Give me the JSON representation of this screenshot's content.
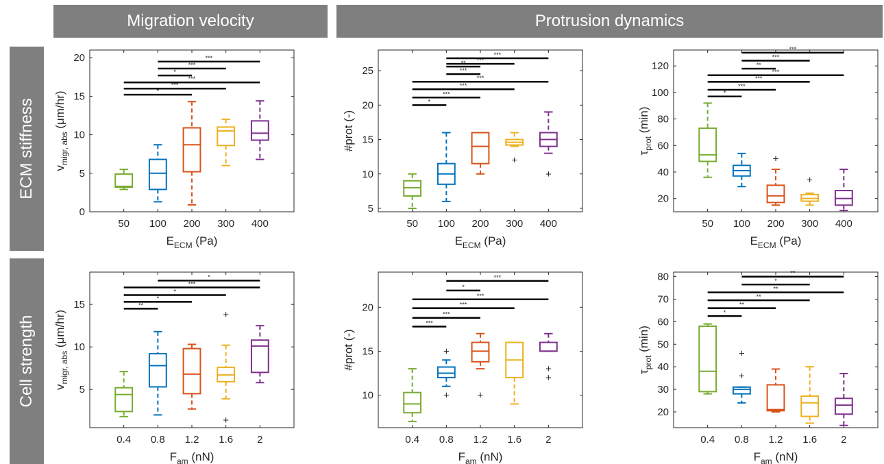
{
  "headers": {
    "migration": "Migration velocity",
    "protrusion": "Protrusion dynamics",
    "row1": "ECM stiffness",
    "row2": "Cell strength"
  },
  "colors": [
    "#77AC30",
    "#0072BD",
    "#D95319",
    "#EDB120",
    "#7E2F8E"
  ],
  "chart_data": [
    {
      "type": "box",
      "categories": [
        "50",
        "100",
        "200",
        "300",
        "400"
      ],
      "xlabel": "E_ECM (Pa)",
      "ylabel": "v_migr, abs (μm/hr)",
      "ylim": [
        0,
        21
      ],
      "yticks": [
        0,
        5,
        10,
        15,
        20
      ],
      "boxes": [
        {
          "lw": 2.9,
          "q1": 3.2,
          "med": 3.3,
          "q3": 4.9,
          "uw": 5.5,
          "out": []
        },
        {
          "lw": 1.3,
          "q1": 2.9,
          "med": 5.0,
          "q3": 6.8,
          "uw": 8.7,
          "out": []
        },
        {
          "lw": 0.9,
          "q1": 5.2,
          "med": 8.7,
          "q3": 10.9,
          "uw": 14.3,
          "out": []
        },
        {
          "lw": 6.0,
          "q1": 8.6,
          "med": 10.5,
          "q3": 11.0,
          "uw": 12.0,
          "out": []
        },
        {
          "lw": 6.8,
          "q1": 9.3,
          "med": 10.2,
          "q3": 11.8,
          "uw": 14.4,
          "out": []
        }
      ],
      "sig": [
        {
          "from": 0,
          "to": 2,
          "y": 15.2,
          "label": "*"
        },
        {
          "from": 0,
          "to": 3,
          "y": 16.0,
          "label": "***"
        },
        {
          "from": 0,
          "to": 4,
          "y": 16.8,
          "label": "***"
        },
        {
          "from": 1,
          "to": 2,
          "y": 17.7,
          "label": "*"
        },
        {
          "from": 1,
          "to": 3,
          "y": 18.6,
          "label": "***"
        },
        {
          "from": 1,
          "to": 4,
          "y": 19.5,
          "label": "***"
        }
      ]
    },
    {
      "type": "box",
      "categories": [
        "50",
        "100",
        "200",
        "300",
        "400"
      ],
      "xlabel": "E_ECM (Pa)",
      "ylabel": "#prot (-)",
      "ylim": [
        4.5,
        28
      ],
      "yticks": [
        5,
        10,
        15,
        20,
        25
      ],
      "boxes": [
        {
          "lw": 5,
          "q1": 6.8,
          "med": 8,
          "q3": 9,
          "uw": 10,
          "out": []
        },
        {
          "lw": 6,
          "q1": 8.5,
          "med": 10,
          "q3": 11.5,
          "uw": 16,
          "out": []
        },
        {
          "lw": 10,
          "q1": 11.5,
          "med": 14,
          "q3": 16,
          "uw": 16,
          "out": []
        },
        {
          "lw": 14,
          "q1": 14.2,
          "med": 14.6,
          "q3": 15,
          "uw": 16,
          "out": [
            12
          ]
        },
        {
          "lw": 13,
          "q1": 14,
          "med": 15,
          "q3": 16,
          "uw": 19,
          "out": [
            10
          ]
        }
      ],
      "sig": [
        {
          "from": 0,
          "to": 1,
          "y": 20.0,
          "label": "*"
        },
        {
          "from": 0,
          "to": 2,
          "y": 21.1,
          "label": "***"
        },
        {
          "from": 0,
          "to": 3,
          "y": 22.3,
          "label": "***"
        },
        {
          "from": 0,
          "to": 4,
          "y": 23.4,
          "label": "***"
        },
        {
          "from": 1,
          "to": 2,
          "y": 24.5,
          "label": "***"
        },
        {
          "from": 1,
          "to": 2,
          "y": 25.6,
          "label": "**"
        },
        {
          "from": 1,
          "to": 3,
          "y": 26.0,
          "label": "***"
        },
        {
          "from": 1,
          "to": 4,
          "y": 26.8,
          "label": "***"
        }
      ]
    },
    {
      "type": "box",
      "categories": [
        "50",
        "100",
        "200",
        "300",
        "400"
      ],
      "xlabel": "E_ECM (Pa)",
      "ylabel": "τ_prot (min)",
      "ylim": [
        10,
        132
      ],
      "yticks": [
        20,
        40,
        60,
        80,
        100,
        120
      ],
      "boxes": [
        {
          "lw": 36,
          "q1": 48,
          "med": 53,
          "q3": 73,
          "uw": 92,
          "out": []
        },
        {
          "lw": 29,
          "q1": 37,
          "med": 41,
          "q3": 45,
          "uw": 54,
          "out": []
        },
        {
          "lw": 15,
          "q1": 17,
          "med": 22,
          "q3": 30,
          "uw": 42,
          "out": [
            50
          ]
        },
        {
          "lw": 15,
          "q1": 18,
          "med": 20,
          "q3": 23,
          "uw": 24,
          "out": [
            34
          ]
        },
        {
          "lw": 11,
          "q1": 15,
          "med": 20,
          "q3": 26,
          "uw": 42,
          "out": []
        }
      ],
      "sig": [
        {
          "from": 0,
          "to": 1,
          "y": 97,
          "label": "*"
        },
        {
          "from": 0,
          "to": 2,
          "y": 102,
          "label": "***"
        },
        {
          "from": 0,
          "to": 3,
          "y": 108,
          "label": "***"
        },
        {
          "from": 0,
          "to": 4,
          "y": 113,
          "label": "***"
        },
        {
          "from": 1,
          "to": 2,
          "y": 118,
          "label": "**"
        },
        {
          "from": 1,
          "to": 3,
          "y": 124,
          "label": "***"
        },
        {
          "from": 1,
          "to": 4,
          "y": 130,
          "label": "***"
        }
      ]
    },
    {
      "type": "box",
      "categories": [
        "0.4",
        "0.8",
        "1.2",
        "1.6",
        "2"
      ],
      "xlabel": "F_am (nN)",
      "ylabel": "v_migr, abs (μm/hr)",
      "ylim": [
        0.5,
        18.8
      ],
      "yticks": [
        5,
        10,
        15
      ],
      "boxes": [
        {
          "lw": 1.8,
          "q1": 2.4,
          "med": 4.4,
          "q3": 5.2,
          "uw": 7.1,
          "out": []
        },
        {
          "lw": 2.0,
          "q1": 5.3,
          "med": 7.8,
          "q3": 9.2,
          "uw": 11.8,
          "out": []
        },
        {
          "lw": 2.7,
          "q1": 4.5,
          "med": 6.8,
          "q3": 9.8,
          "uw": 10.3,
          "out": []
        },
        {
          "lw": 3.9,
          "q1": 5.9,
          "med": 6.7,
          "q3": 7.6,
          "uw": 10.2,
          "out": [
            13.8,
            1.4
          ]
        },
        {
          "lw": 5.8,
          "q1": 7.0,
          "med": 10.1,
          "q3": 10.8,
          "uw": 12.5,
          "out": []
        }
      ],
      "sig": [
        {
          "from": 0,
          "to": 1,
          "y": 14.5,
          "label": "**"
        },
        {
          "from": 0,
          "to": 2,
          "y": 15.3,
          "label": "*"
        },
        {
          "from": 0,
          "to": 3,
          "y": 16.1,
          "label": "*"
        },
        {
          "from": 0,
          "to": 4,
          "y": 17.0,
          "label": "***"
        },
        {
          "from": 1,
          "to": 4,
          "y": 17.8,
          "label": "*"
        }
      ]
    },
    {
      "type": "box",
      "categories": [
        "0.4",
        "0.8",
        "1.2",
        "1.6",
        "2"
      ],
      "xlabel": "F_am (nN)",
      "ylabel": "#prot (-)",
      "ylim": [
        6.3,
        24
      ],
      "yticks": [
        10,
        15,
        20
      ],
      "boxes": [
        {
          "lw": 7,
          "q1": 8,
          "med": 9,
          "q3": 10.3,
          "uw": 13,
          "out": []
        },
        {
          "lw": 11,
          "q1": 12,
          "med": 12.5,
          "q3": 13.2,
          "uw": 14,
          "out": [
            15,
            10
          ]
        },
        {
          "lw": 13,
          "q1": 13.8,
          "med": 15,
          "q3": 16,
          "uw": 17,
          "out": [
            10
          ]
        },
        {
          "lw": 9,
          "q1": 12,
          "med": 14,
          "q3": 16,
          "uw": 16,
          "out": []
        },
        {
          "lw": 15,
          "q1": 15,
          "med": 15,
          "q3": 16,
          "uw": 17,
          "out": [
            13,
            12
          ]
        }
      ],
      "sig": [
        {
          "from": 0,
          "to": 1,
          "y": 17.8,
          "label": "***"
        },
        {
          "from": 0,
          "to": 2,
          "y": 18.8,
          "label": "***"
        },
        {
          "from": 0,
          "to": 3,
          "y": 19.9,
          "label": "***"
        },
        {
          "from": 0,
          "to": 4,
          "y": 20.9,
          "label": "***"
        },
        {
          "from": 1,
          "to": 2,
          "y": 21.9,
          "label": "*"
        },
        {
          "from": 1,
          "to": 4,
          "y": 23.0,
          "label": "***"
        }
      ]
    },
    {
      "type": "box",
      "categories": [
        "0.4",
        "0.8",
        "1.2",
        "1.6",
        "2"
      ],
      "xlabel": "F_am (nN)",
      "ylabel": "τ_prot (min)",
      "ylim": [
        13,
        82
      ],
      "yticks": [
        20,
        30,
        40,
        50,
        60,
        70,
        80
      ],
      "boxes": [
        {
          "lw": 28,
          "q1": 29,
          "med": 38,
          "q3": 58,
          "uw": 59,
          "out": []
        },
        {
          "lw": 24,
          "q1": 28,
          "med": 30,
          "q3": 31,
          "uw": 31,
          "out": [
            46,
            36
          ]
        },
        {
          "lw": 20,
          "q1": 20.5,
          "med": 21,
          "q3": 32,
          "uw": 39,
          "out": []
        },
        {
          "lw": 15,
          "q1": 18,
          "med": 24,
          "q3": 27,
          "uw": 40,
          "out": []
        },
        {
          "lw": 14,
          "q1": 19,
          "med": 23,
          "q3": 26,
          "uw": 37,
          "out": []
        }
      ],
      "sig": [
        {
          "from": 0,
          "to": 1,
          "y": 62.5,
          "label": "*"
        },
        {
          "from": 0,
          "to": 2,
          "y": 66,
          "label": "**"
        },
        {
          "from": 0,
          "to": 3,
          "y": 69.5,
          "label": "**"
        },
        {
          "from": 0,
          "to": 4,
          "y": 73,
          "label": "**"
        },
        {
          "from": 1,
          "to": 3,
          "y": 76.5,
          "label": "*"
        },
        {
          "from": 1,
          "to": 4,
          "y": 80,
          "label": "**"
        }
      ]
    }
  ]
}
